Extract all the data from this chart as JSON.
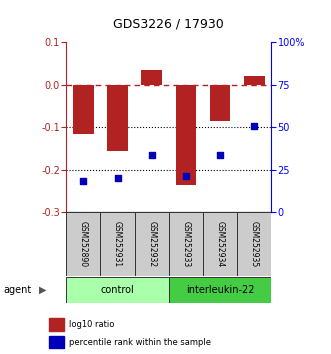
{
  "title": "GDS3226 / 17930",
  "samples": [
    "GSM252890",
    "GSM252931",
    "GSM252932",
    "GSM252933",
    "GSM252934",
    "GSM252935"
  ],
  "log10_ratio": [
    -0.115,
    -0.155,
    0.035,
    -0.235,
    -0.085,
    0.02
  ],
  "percentile_rank_raw": [
    18.5,
    20.0,
    34.0,
    21.5,
    33.5,
    51.0
  ],
  "bar_color": "#b22222",
  "dot_color": "#0000bb",
  "ylim_left": [
    -0.3,
    0.1
  ],
  "ylim_right": [
    0,
    100
  ],
  "yticks_left": [
    0.1,
    0.0,
    -0.1,
    -0.2,
    -0.3
  ],
  "yticks_right": [
    100,
    75,
    50,
    25,
    0
  ],
  "control_color": "#aaffaa",
  "interleukin_color": "#44cc44",
  "sample_box_color": "#cccccc",
  "legend_red_label": "log10 ratio",
  "legend_blue_label": "percentile rank within the sample"
}
